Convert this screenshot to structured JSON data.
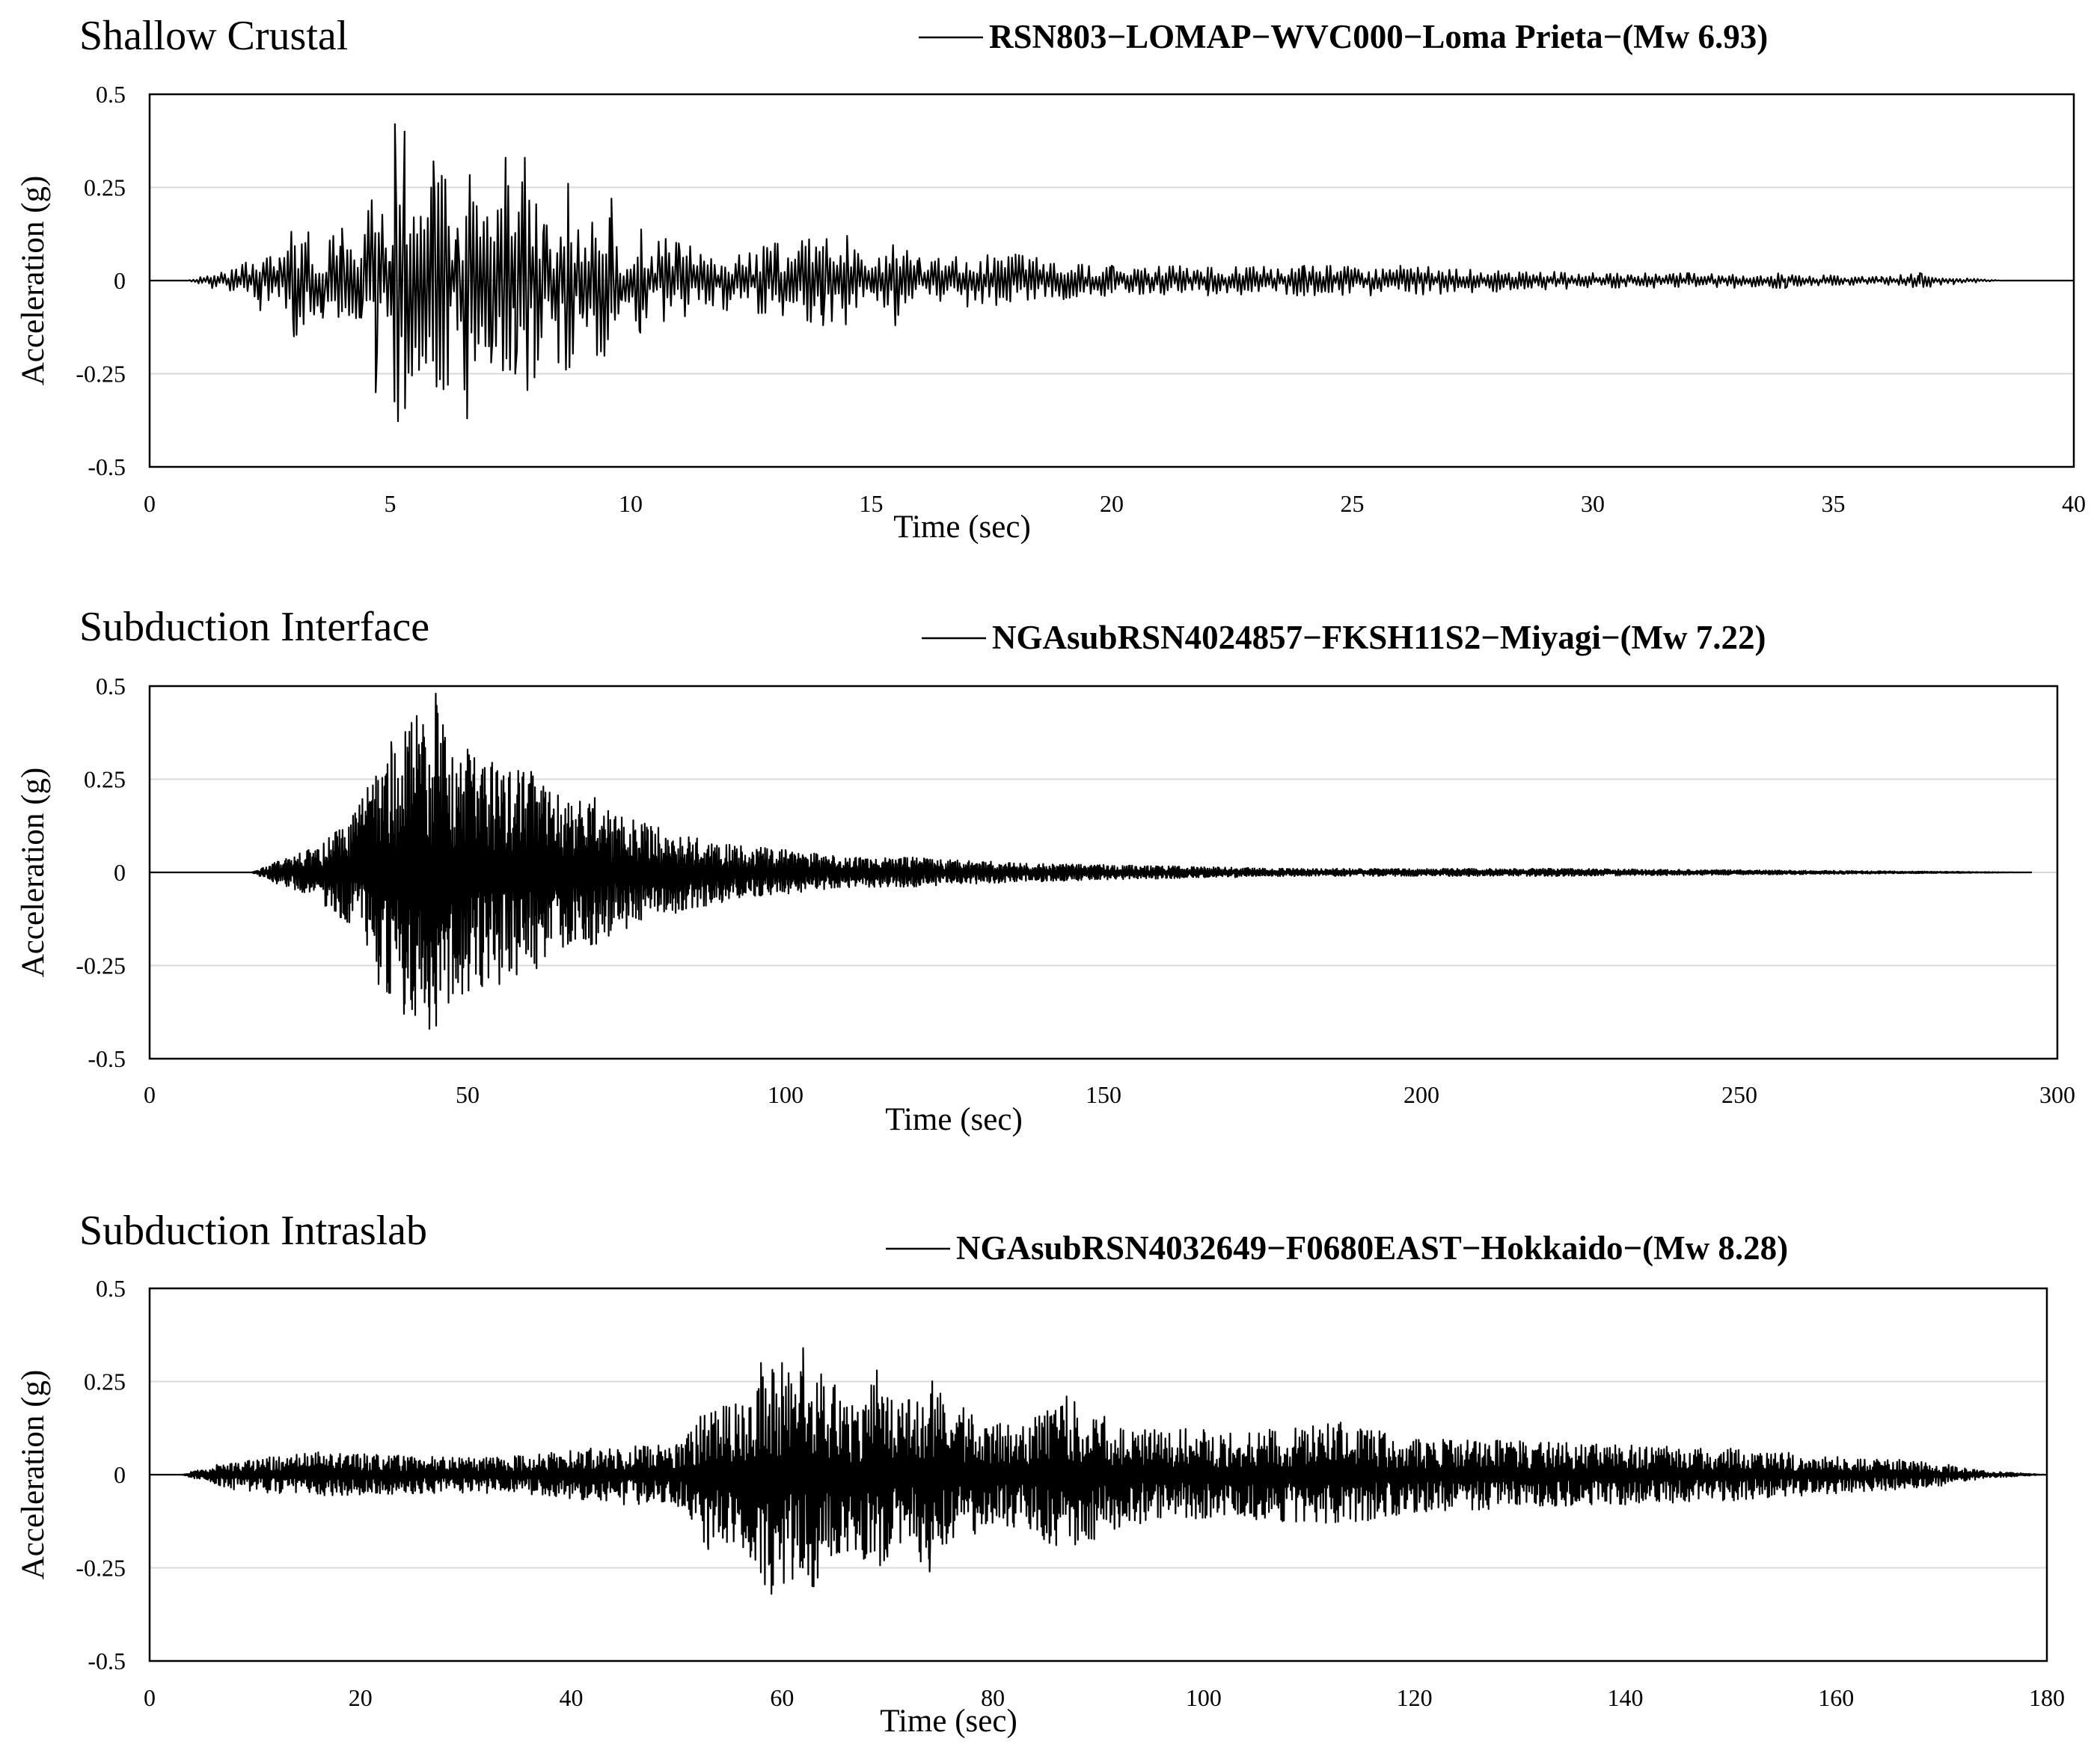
{
  "chart_data": [
    {
      "type": "line",
      "title": "Shallow Crustal",
      "xlabel": "Time (sec)",
      "ylabel": "Acceleration (g)",
      "xlim": [
        0,
        40
      ],
      "ylim": [
        -0.5,
        0.5
      ],
      "x_ticks": [
        "0",
        "5",
        "10",
        "15",
        "20",
        "25",
        "30",
        "35",
        "40"
      ],
      "y_ticks": [
        "0.5",
        "0.25",
        "0",
        "-0.25",
        "-0.5"
      ],
      "grid": true,
      "legend_position": "top-right",
      "series": [
        {
          "name": "RSN803−LOMAP−WVC000−Loma Prieta−(Mw 6.93)",
          "x": [
            0,
            0.8,
            1.3,
            1.8,
            2.3,
            2.7,
            3,
            3.3,
            3.6,
            4,
            4.4,
            4.7,
            5,
            5.1,
            5.3,
            5.6,
            5.9,
            6.2,
            6.4,
            6.6,
            6.8,
            7.1,
            7.4,
            7.6,
            7.8,
            8,
            8.2,
            8.5,
            8.7,
            9,
            9.3,
            9.6,
            9.8,
            10.2,
            11,
            12,
            13,
            14,
            14.5,
            15,
            15.5,
            16,
            17,
            18,
            19,
            20,
            22,
            24,
            26,
            28,
            30,
            32,
            34,
            36,
            36.8,
            37.5,
            38.5,
            40
          ],
          "y": [
            0,
            0,
            -0.02,
            0.03,
            -0.08,
            0.06,
            -0.15,
            0.13,
            -0.1,
            0.14,
            -0.1,
            -0.3,
            0.05,
            0.42,
            0.4,
            -0.24,
            0.32,
            -0.28,
            0.14,
            -0.37,
            0.2,
            -0.22,
            0.33,
            -0.25,
            0.33,
            -0.26,
            0.15,
            -0.22,
            0.26,
            -0.1,
            -0.2,
            0.22,
            -0.05,
            -0.14,
            0.1,
            -0.08,
            0.1,
            -0.12,
            0.12,
            -0.03,
            -0.12,
            0.06,
            -0.07,
            0.07,
            -0.05,
            0.04,
            -0.04,
            0.04,
            0.04,
            -0.03,
            0.02,
            0.02,
            -0.02,
            0.01,
            0.02,
            -0.01,
            0,
            0
          ]
        }
      ]
    },
    {
      "type": "line",
      "title": "Subduction Interface",
      "xlabel": "Time (sec)",
      "ylabel": "Acceleration (g)",
      "xlim": [
        0,
        300
      ],
      "ylim": [
        -0.5,
        0.5
      ],
      "x_ticks": [
        "0",
        "50",
        "100",
        "150",
        "200",
        "250",
        "300"
      ],
      "y_ticks": [
        "0.5",
        "0.25",
        "0",
        "-0.25",
        "-0.5"
      ],
      "grid": true,
      "legend_position": "top-right",
      "series": [
        {
          "name": "NGAsubRSN4024857−FKSH11S2−Miyagi−(Mw 7.22)",
          "x": [
            0,
            16,
            20,
            25,
            30,
            33,
            36,
            38,
            40,
            42,
            44,
            45,
            47,
            50,
            55,
            60,
            65,
            70,
            75,
            80,
            90,
            100,
            110,
            120,
            130,
            150,
            180,
            220,
            260,
            296
          ],
          "y": [
            0,
            0,
            -0.03,
            0.06,
            -0.12,
            0.18,
            -0.3,
            0.35,
            -0.38,
            0.42,
            -0.42,
            0.48,
            -0.35,
            0.33,
            -0.3,
            0.27,
            -0.2,
            0.2,
            -0.15,
            0.12,
            -0.08,
            0.06,
            -0.04,
            0.04,
            -0.03,
            0.02,
            -0.01,
            0.01,
            -0.005,
            0
          ]
        }
      ]
    },
    {
      "type": "line",
      "title": "Subduction Intraslab",
      "xlabel": "Time (sec)",
      "ylabel": "Acceleration (g)",
      "xlim": [
        0,
        180
      ],
      "ylim": [
        -0.5,
        0.5
      ],
      "x_ticks": [
        "0",
        "20",
        "40",
        "60",
        "80",
        "100",
        "120",
        "140",
        "160",
        "180"
      ],
      "y_ticks": [
        "0.5",
        "0.25",
        "0",
        "-0.25",
        "-0.5"
      ],
      "grid": true,
      "legend_position": "top-right",
      "series": [
        {
          "name": "NGAsubRSN4032649−F0680EAST−Hokkaido−(Mw 8.28)",
          "x": [
            0,
            3,
            8,
            16,
            25,
            35,
            45,
            50,
            53,
            55,
            57,
            58,
            59,
            60,
            61,
            62,
            63,
            65,
            67,
            69,
            70,
            72,
            74,
            78,
            82,
            87,
            92,
            100,
            105,
            113,
            120,
            130,
            140,
            150,
            160,
            166,
            170,
            174,
            180
          ],
          "y": [
            0,
            0,
            -0.04,
            0.06,
            -0.05,
            0.05,
            -0.08,
            0.08,
            -0.2,
            0.18,
            -0.22,
            0.3,
            -0.32,
            0.3,
            -0.28,
            0.34,
            -0.3,
            0.24,
            -0.2,
            0.28,
            -0.22,
            0.2,
            -0.26,
            0.16,
            -0.14,
            0.21,
            -0.14,
            0.12,
            -0.12,
            0.14,
            -0.1,
            0.09,
            -0.08,
            0.07,
            -0.05,
            0.04,
            -0.03,
            0.01,
            0
          ]
        }
      ]
    }
  ]
}
